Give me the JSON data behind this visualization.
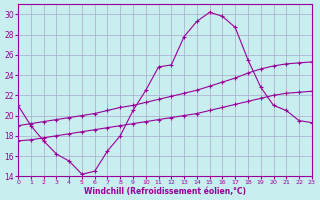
{
  "xlabel": "Windchill (Refroidissement éolien,°C)",
  "xlim": [
    0,
    23
  ],
  "ylim": [
    14,
    31
  ],
  "yticks": [
    14,
    16,
    18,
    20,
    22,
    24,
    26,
    28,
    30
  ],
  "xticks": [
    0,
    1,
    2,
    3,
    4,
    5,
    6,
    7,
    8,
    9,
    10,
    11,
    12,
    13,
    14,
    15,
    16,
    17,
    18,
    19,
    20,
    21,
    22,
    23
  ],
  "bg_color": "#c8eef0",
  "grid_color": "#aaaacc",
  "line_color": "#990099",
  "line1_x": [
    0,
    1,
    2,
    3,
    4,
    5,
    6,
    7,
    8,
    9,
    10,
    11,
    12,
    13,
    14,
    15,
    16,
    17,
    18,
    19,
    20,
    21,
    22,
    23
  ],
  "line1_y": [
    21.0,
    19.0,
    17.5,
    16.2,
    15.5,
    14.2,
    14.5,
    16.5,
    18.0,
    20.5,
    22.5,
    24.8,
    25.0,
    27.8,
    29.3,
    30.2,
    29.8,
    28.7,
    25.5,
    22.8,
    21.0,
    20.5,
    19.5,
    19.3
  ],
  "line2_x": [
    0,
    1,
    2,
    3,
    4,
    5,
    6,
    7,
    8,
    9,
    10,
    11,
    12,
    13,
    14,
    15,
    16,
    17,
    18,
    19,
    20,
    21,
    22,
    23
  ],
  "line2_y": [
    19.0,
    19.2,
    19.4,
    19.6,
    19.8,
    20.0,
    20.2,
    20.5,
    20.8,
    21.0,
    21.3,
    21.6,
    21.9,
    22.2,
    22.5,
    22.9,
    23.3,
    23.7,
    24.2,
    24.6,
    24.9,
    25.1,
    25.2,
    25.3
  ],
  "line3_x": [
    0,
    1,
    2,
    3,
    4,
    5,
    6,
    7,
    8,
    9,
    10,
    11,
    12,
    13,
    14,
    15,
    16,
    17,
    18,
    19,
    20,
    21,
    22,
    23
  ],
  "line3_y": [
    17.5,
    17.6,
    17.8,
    18.0,
    18.2,
    18.4,
    18.6,
    18.8,
    19.0,
    19.2,
    19.4,
    19.6,
    19.8,
    20.0,
    20.2,
    20.5,
    20.8,
    21.1,
    21.4,
    21.7,
    22.0,
    22.2,
    22.3,
    22.4
  ]
}
